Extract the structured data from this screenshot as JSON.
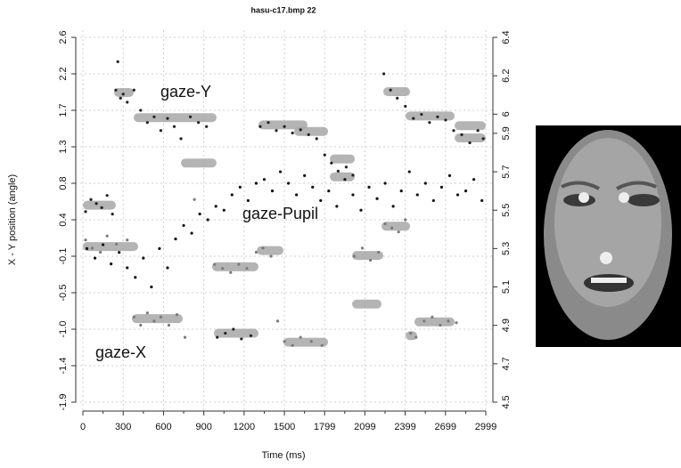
{
  "chart_data": {
    "type": "scatter",
    "title": "hasu-c17.bmp 22",
    "xlabel": "Time (ms)",
    "ylabel": "X - Y position (angle)",
    "xlim": [
      0,
      2999
    ],
    "xticks": [
      0,
      300,
      600,
      900,
      1200,
      1500,
      1799,
      2099,
      2399,
      2699,
      2999
    ],
    "ylim": [
      -1.9,
      2.6
    ],
    "yticks": [
      2.6,
      {
        "value": 2.15,
        "label": "2.2"
      },
      1.7,
      {
        "value": 1.25,
        "label": "1.3"
      },
      0.8,
      {
        "value": 0.35,
        "label": "0.4"
      },
      -0.1,
      {
        "value": -0.55,
        "label": "-0.5"
      },
      {
        "value": -1,
        "label": "-1.0"
      },
      {
        "value": -1.45,
        "label": "-1.4"
      },
      -1.9
    ],
    "y2lim": [
      4.5,
      6.4
    ],
    "y2ticks": [
      6.4,
      6.2,
      6,
      5.9,
      5.7,
      5.5,
      5.3,
      5.1,
      4.9,
      4.7,
      4.5
    ],
    "grid": true,
    "annotations": [
      "gaze-Y",
      "gaze-X",
      "gaze-Pupil"
    ],
    "fixations": {
      "color": "#a8a8a8",
      "x0": [
        0,
        232,
        378,
        730,
        1307,
        1572,
        1838,
        1838,
        2236,
        2402,
        2767,
        2767,
        0,
        365,
        962,
        975,
        1294,
        1493,
        2004,
        2004,
        2223,
        2402,
        2468
      ],
      "x1": [
        245,
        378,
        995,
        995,
        1672,
        1825,
        2024,
        2024,
        2435,
        2767,
        2999,
        2999,
        411,
        743,
        1307,
        1307,
        1493,
        1825,
        2236,
        2223,
        2435,
        2488,
        2767
      ],
      "values": [
        0.53,
        1.92,
        1.61,
        1.05,
        1.52,
        1.44,
        1.1,
        0.88,
        1.93,
        1.63,
        1.51,
        1.36,
        0.02,
        -0.87,
        -0.23,
        -1.05,
        -0.03,
        -1.16,
        -0.09,
        -0.69,
        0.27,
        -1.08,
        -0.91
      ]
    },
    "series": [
      {
        "color": "#222222",
        "x": [
          20,
          60,
          100,
          140,
          180,
          220,
          245,
          260,
          280,
          300,
          330,
          380,
          430,
          480,
          530,
          580,
          630,
          680,
          730,
          800,
          860,
          920,
          1000,
          1060,
          1120,
          1180,
          1250,
          1320,
          1380,
          1440,
          1500,
          1560,
          1620,
          1680,
          1740,
          1800,
          1850,
          1900,
          1960,
          2010,
          2240,
          2290,
          2340,
          2400,
          2460,
          2520,
          2580,
          2640,
          2700,
          2760,
          2820,
          2880,
          2940,
          2980
        ],
        "values": [
          0.45,
          0.6,
          0.55,
          0.5,
          0.65,
          0.42,
          1.95,
          2.3,
          1.85,
          1.9,
          1.8,
          1.95,
          1.7,
          1.55,
          1.62,
          1.45,
          1.6,
          1.5,
          1.35,
          1.62,
          1.55,
          1.5,
          -1.1,
          -1.05,
          -1.0,
          -1.12,
          -1.08,
          1.5,
          1.55,
          1.45,
          1.5,
          1.42,
          1.46,
          1.4,
          1.35,
          1.15,
          1.05,
          0.95,
          1.0,
          0.9,
          2.15,
          1.95,
          1.85,
          1.75,
          1.6,
          1.65,
          1.55,
          1.62,
          1.58,
          1.45,
          1.4,
          1.3,
          1.45,
          1.35
        ]
      },
      {
        "color": "#7a7a7a",
        "x": [
          20,
          70,
          130,
          180,
          250,
          330,
          380,
          430,
          480,
          530,
          580,
          640,
          700,
          760,
          830,
          980,
          1040,
          1100,
          1160,
          1220,
          1290,
          1340,
          1400,
          1450,
          1500,
          1560,
          1620,
          1700,
          1780,
          2020,
          2080,
          2140,
          2200,
          2250,
          2300,
          2350,
          2400,
          2440,
          2480,
          2540,
          2600,
          2660,
          2720,
          2780
        ],
        "values": [
          0.1,
          0.0,
          -0.05,
          0.15,
          0.05,
          0.1,
          -0.85,
          -0.95,
          -0.8,
          -0.9,
          -0.85,
          -0.95,
          -0.82,
          -1.1,
          0.6,
          -0.2,
          -0.25,
          -0.3,
          -0.2,
          -0.25,
          -0.05,
          0.0,
          -0.1,
          -0.9,
          -1.15,
          -1.2,
          -1.1,
          -1.15,
          -1.2,
          -0.1,
          0.0,
          -0.15,
          -0.05,
          0.3,
          0.25,
          0.2,
          0.35,
          -1.05,
          -1.1,
          -0.9,
          -0.85,
          -0.95,
          -0.9,
          -0.92
        ]
      },
      {
        "color": "#111111",
        "axis": "y2",
        "x": [
          30,
          90,
          150,
          210,
          270,
          330,
          390,
          450,
          510,
          570,
          630,
          690,
          750,
          810,
          870,
          930,
          990,
          1050,
          1110,
          1170,
          1230,
          1290,
          1350,
          1410,
          1470,
          1530,
          1590,
          1650,
          1710,
          1770,
          1830,
          1890,
          1950,
          2010,
          2070,
          2130,
          2190,
          2250,
          2310,
          2370,
          2430,
          2490,
          2550,
          2610,
          2670,
          2730,
          2790,
          2850,
          2910,
          2970
        ],
        "values": [
          5.3,
          5.25,
          5.32,
          5.22,
          5.28,
          5.2,
          5.15,
          5.25,
          5.1,
          5.3,
          5.2,
          5.35,
          5.42,
          5.38,
          5.48,
          5.45,
          5.52,
          5.5,
          5.58,
          5.62,
          5.55,
          5.64,
          5.66,
          5.6,
          5.7,
          5.64,
          5.58,
          5.68,
          5.62,
          5.55,
          5.6,
          5.52,
          5.66,
          5.58,
          5.5,
          5.62,
          5.56,
          5.64,
          5.52,
          5.6,
          5.7,
          5.58,
          5.64,
          5.55,
          5.62,
          5.68,
          5.58,
          5.6,
          5.66,
          5.55
        ]
      }
    ]
  }
}
